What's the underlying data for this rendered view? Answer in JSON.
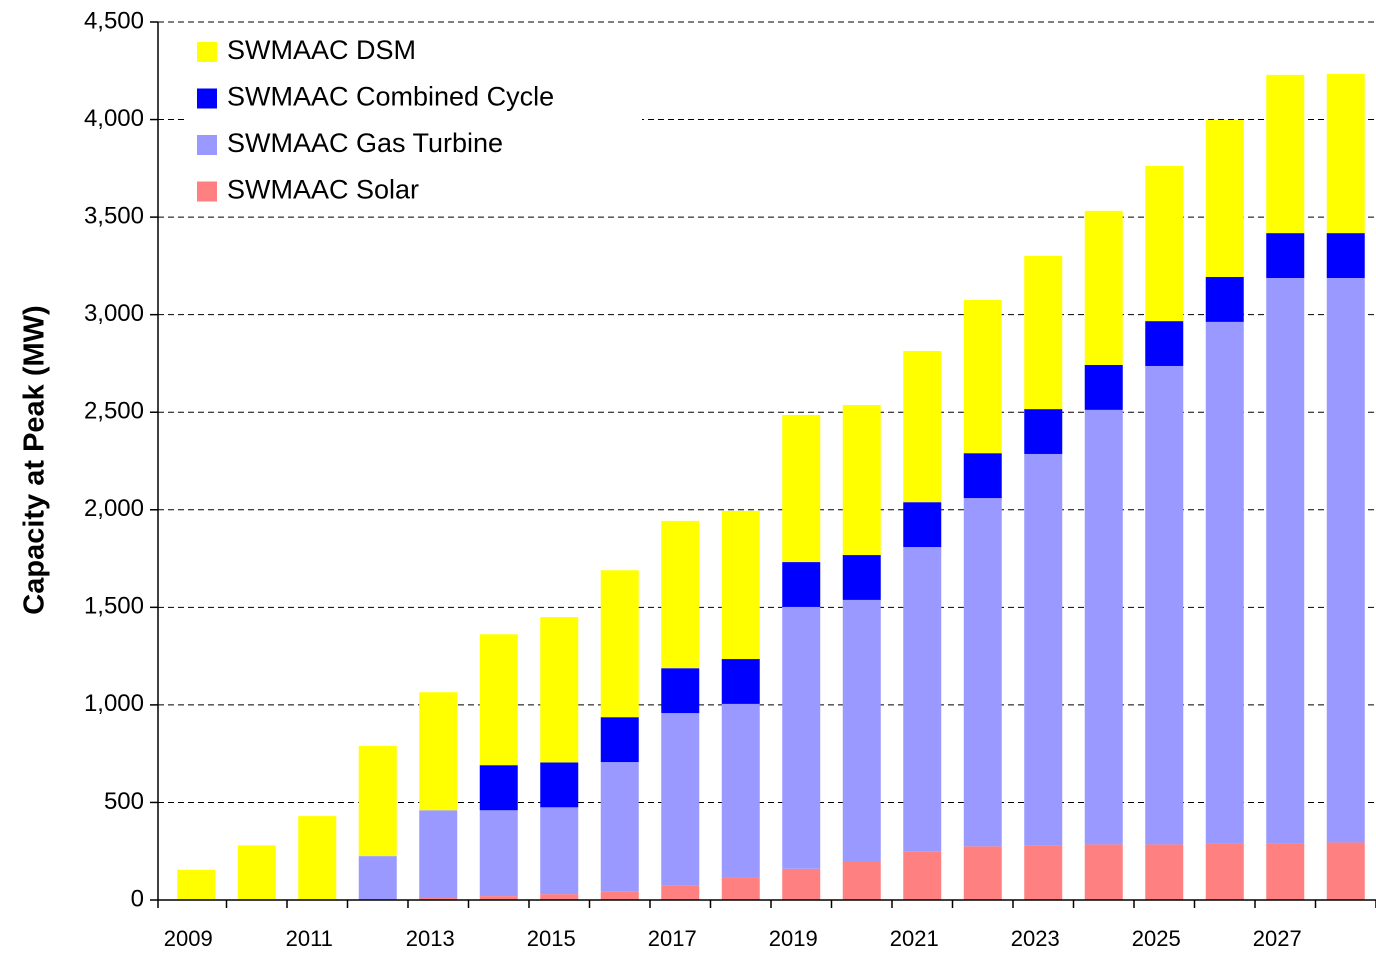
{
  "chart_data": {
    "type": "stacked_bar",
    "y_label": "Capacity at Peak (MW)",
    "categories": [
      "2009",
      null,
      "2011",
      null,
      "2013",
      null,
      "2015",
      null,
      "2017",
      null,
      "2019",
      null,
      "2021",
      null,
      "2023",
      null,
      "2025",
      null,
      "2027",
      null
    ],
    "series": [
      {
        "name": "SWMAAC Solar",
        "color": "#ff8080",
        "values": [
          0,
          0,
          0,
          5,
          10,
          20,
          30,
          45,
          75,
          115,
          160,
          200,
          250,
          275,
          280,
          285,
          285,
          290,
          290,
          295
        ]
      },
      {
        "name": "SWMAAC Gas Turbine",
        "color": "#9999ff",
        "values": [
          0,
          0,
          0,
          220,
          450,
          440,
          445,
          662,
          883,
          890,
          1342,
          1338,
          1559,
          1785,
          2006,
          2227,
          2452,
          2673,
          2898,
          2893
        ]
      },
      {
        "name": "SWMAAC Combined Cycle",
        "color": "#0000ff",
        "values": [
          0,
          0,
          0,
          0,
          0,
          231,
          230,
          230,
          230,
          230,
          230,
          230,
          230,
          230,
          230,
          230,
          230,
          230,
          230,
          230
        ]
      },
      {
        "name": "SWMAAC DSM",
        "color": "#ffff00",
        "values": [
          155,
          280,
          430,
          565,
          605,
          671,
          745,
          753,
          755,
          759,
          754,
          769,
          775,
          785,
          785,
          790,
          795,
          805,
          811,
          816
        ]
      }
    ],
    "ylim": [
      0,
      4500
    ],
    "yticks": [
      0,
      500,
      {
        "value": 1000,
        "label": "1,000"
      },
      {
        "value": 1500,
        "label": "1,500"
      },
      {
        "value": 2000,
        "label": "2,000"
      },
      {
        "value": 2500,
        "label": "2,500"
      },
      {
        "value": 3000,
        "label": "3,000"
      },
      {
        "value": 3500,
        "label": "3,500"
      },
      {
        "value": 4000,
        "label": "4,000"
      },
      {
        "value": 4500,
        "label": "4,500"
      }
    ],
    "grid": true,
    "legend": "upper left"
  }
}
